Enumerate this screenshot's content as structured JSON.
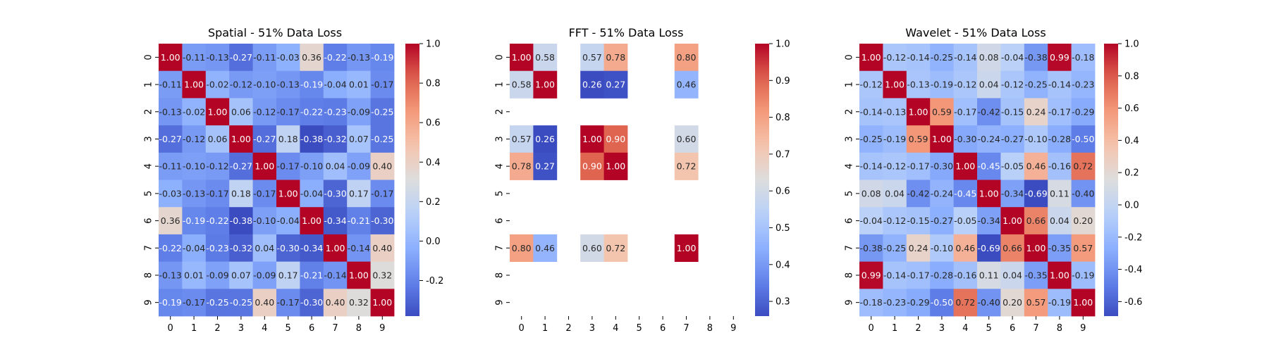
{
  "chart_data": [
    {
      "type": "heatmap",
      "title": "Spatial - 51% Data Loss",
      "x_ticks": [
        "0",
        "1",
        "2",
        "3",
        "4",
        "5",
        "6",
        "7",
        "8",
        "9"
      ],
      "y_ticks": [
        "0",
        "1",
        "2",
        "3",
        "4",
        "5",
        "6",
        "7",
        "8",
        "9"
      ],
      "colormap": "coolwarm",
      "vmin": -0.38,
      "vmax": 1.0,
      "colorbar_ticks": [
        "-0.2",
        "0.0",
        "0.2",
        "0.4",
        "0.6",
        "0.8",
        "1.0"
      ],
      "colorbar_tick_values": [
        -0.2,
        0.0,
        0.2,
        0.4,
        0.6,
        0.8,
        1.0
      ],
      "values": [
        [
          1.0,
          -0.11,
          -0.13,
          -0.27,
          -0.11,
          -0.03,
          0.36,
          -0.22,
          -0.13,
          -0.19
        ],
        [
          -0.11,
          1.0,
          -0.02,
          -0.12,
          -0.1,
          -0.13,
          -0.19,
          -0.04,
          0.01,
          -0.17
        ],
        [
          -0.13,
          -0.02,
          1.0,
          0.06,
          -0.12,
          -0.17,
          -0.22,
          -0.23,
          -0.09,
          -0.25
        ],
        [
          -0.27,
          -0.12,
          0.06,
          1.0,
          -0.27,
          0.18,
          -0.38,
          -0.32,
          0.07,
          -0.25
        ],
        [
          -0.11,
          -0.1,
          -0.12,
          -0.27,
          1.0,
          -0.17,
          -0.1,
          0.04,
          -0.09,
          0.4
        ],
        [
          -0.03,
          -0.13,
          -0.17,
          0.18,
          -0.17,
          1.0,
          -0.04,
          -0.3,
          0.17,
          -0.17
        ],
        [
          0.36,
          -0.19,
          -0.22,
          -0.38,
          -0.1,
          -0.04,
          1.0,
          -0.34,
          -0.21,
          -0.3
        ],
        [
          -0.22,
          -0.04,
          -0.23,
          -0.32,
          0.04,
          -0.3,
          -0.34,
          1.0,
          -0.14,
          0.4
        ],
        [
          -0.13,
          0.01,
          -0.09,
          0.07,
          -0.09,
          0.17,
          -0.21,
          -0.14,
          1.0,
          0.32
        ],
        [
          -0.19,
          -0.17,
          -0.25,
          -0.25,
          0.4,
          -0.17,
          -0.3,
          0.4,
          0.32,
          1.0
        ]
      ]
    },
    {
      "type": "heatmap",
      "title": "FFT - 51% Data Loss",
      "x_ticks": [
        "0",
        "1",
        "2",
        "3",
        "4",
        "5",
        "6",
        "7",
        "8",
        "9"
      ],
      "y_ticks": [
        "0",
        "1",
        "2",
        "3",
        "4",
        "5",
        "6",
        "7",
        "8",
        "9"
      ],
      "colormap": "coolwarm",
      "vmin": 0.26,
      "vmax": 1.0,
      "colorbar_ticks": [
        "0.3",
        "0.4",
        "0.5",
        "0.6",
        "0.7",
        "0.8",
        "0.9",
        "1.0"
      ],
      "colorbar_tick_values": [
        0.3,
        0.4,
        0.5,
        0.6,
        0.7,
        0.8,
        0.9,
        1.0
      ],
      "values": [
        [
          1.0,
          0.58,
          null,
          0.57,
          0.78,
          null,
          null,
          0.8,
          null,
          null
        ],
        [
          0.58,
          1.0,
          null,
          0.26,
          0.27,
          null,
          null,
          0.46,
          null,
          null
        ],
        [
          null,
          null,
          null,
          null,
          null,
          null,
          null,
          null,
          null,
          null
        ],
        [
          0.57,
          0.26,
          null,
          1.0,
          0.9,
          null,
          null,
          0.6,
          null,
          null
        ],
        [
          0.78,
          0.27,
          null,
          0.9,
          1.0,
          null,
          null,
          0.72,
          null,
          null
        ],
        [
          null,
          null,
          null,
          null,
          null,
          null,
          null,
          null,
          null,
          null
        ],
        [
          null,
          null,
          null,
          null,
          null,
          null,
          null,
          null,
          null,
          null
        ],
        [
          0.8,
          0.46,
          null,
          0.6,
          0.72,
          null,
          null,
          1.0,
          null,
          null
        ],
        [
          null,
          null,
          null,
          null,
          null,
          null,
          null,
          null,
          null,
          null
        ],
        [
          null,
          null,
          null,
          null,
          null,
          null,
          null,
          null,
          null,
          null
        ]
      ]
    },
    {
      "type": "heatmap",
      "title": "Wavelet - 51% Data Loss",
      "x_ticks": [
        "0",
        "1",
        "2",
        "3",
        "4",
        "5",
        "6",
        "7",
        "8",
        "9"
      ],
      "y_ticks": [
        "0",
        "1",
        "2",
        "3",
        "4",
        "5",
        "6",
        "7",
        "8",
        "9"
      ],
      "colormap": "coolwarm",
      "vmin": -0.69,
      "vmax": 1.0,
      "colorbar_ticks": [
        "-0.6",
        "-0.4",
        "-0.2",
        "0.0",
        "0.2",
        "0.4",
        "0.6",
        "0.8",
        "1.0"
      ],
      "colorbar_tick_values": [
        -0.6,
        -0.4,
        -0.2,
        0.0,
        0.2,
        0.4,
        0.6,
        0.8,
        1.0
      ],
      "values": [
        [
          1.0,
          -0.12,
          -0.14,
          -0.25,
          -0.14,
          0.08,
          -0.04,
          -0.38,
          0.99,
          -0.18
        ],
        [
          -0.12,
          1.0,
          -0.13,
          -0.19,
          -0.12,
          0.04,
          -0.12,
          -0.25,
          -0.14,
          -0.23
        ],
        [
          -0.14,
          -0.13,
          1.0,
          0.59,
          -0.17,
          -0.42,
          -0.15,
          0.24,
          -0.17,
          -0.29
        ],
        [
          -0.25,
          -0.19,
          0.59,
          1.0,
          -0.3,
          -0.24,
          -0.27,
          -0.1,
          -0.28,
          -0.5
        ],
        [
          -0.14,
          -0.12,
          -0.17,
          -0.3,
          1.0,
          -0.45,
          -0.05,
          0.46,
          -0.16,
          0.72
        ],
        [
          0.08,
          0.04,
          -0.42,
          -0.24,
          -0.45,
          1.0,
          -0.34,
          -0.69,
          0.11,
          -0.4
        ],
        [
          -0.04,
          -0.12,
          -0.15,
          -0.27,
          -0.05,
          -0.34,
          1.0,
          0.66,
          0.04,
          0.2
        ],
        [
          -0.38,
          -0.25,
          0.24,
          -0.1,
          0.46,
          -0.69,
          0.66,
          1.0,
          -0.35,
          0.57
        ],
        [
          0.99,
          -0.14,
          -0.17,
          -0.28,
          -0.16,
          0.11,
          0.04,
          -0.35,
          1.0,
          -0.19
        ],
        [
          -0.18,
          -0.23,
          -0.29,
          -0.5,
          0.72,
          -0.4,
          0.2,
          0.57,
          -0.19,
          1.0
        ]
      ]
    }
  ]
}
